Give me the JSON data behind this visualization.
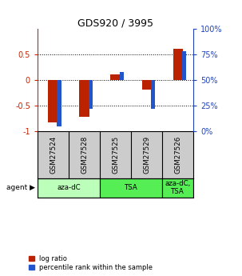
{
  "title": "GDS920 / 3995",
  "samples": [
    "GSM27524",
    "GSM27528",
    "GSM27525",
    "GSM27529",
    "GSM27526"
  ],
  "log_ratios": [
    -0.82,
    -0.72,
    0.12,
    -0.18,
    0.62
  ],
  "percentile_ranks": [
    5,
    22,
    58,
    22,
    78
  ],
  "agents": [
    {
      "label": "aza-dC",
      "span": [
        0,
        2
      ],
      "color": "#bbffbb"
    },
    {
      "label": "TSA",
      "span": [
        2,
        4
      ],
      "color": "#55ee55"
    },
    {
      "label": "aza-dC,\nTSA",
      "span": [
        4,
        5
      ],
      "color": "#55ee55"
    }
  ],
  "ylim": [
    -1.0,
    1.0
  ],
  "yticks_left": [
    -1,
    -0.5,
    0,
    0.5
  ],
  "yticks_right": [
    0,
    25,
    50,
    75,
    100
  ],
  "bar_color_red": "#bb2200",
  "bar_color_blue": "#2255cc",
  "bg_color": "#ffffff",
  "sample_bg": "#cccccc",
  "legend_labels": [
    "log ratio",
    "percentile rank within the sample"
  ]
}
